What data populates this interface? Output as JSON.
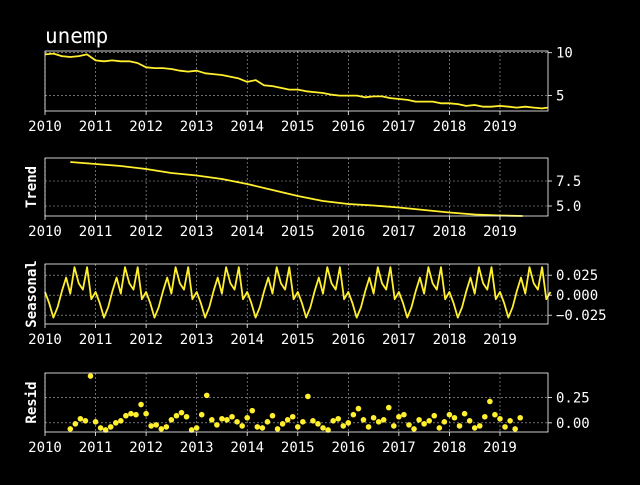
{
  "page": {
    "title": "unemp"
  },
  "style": {
    "background": "#000000",
    "foreground": "#ffffff",
    "series_color": "#ffef2e",
    "grid_color": "#b0b0b0"
  },
  "chart_data": [
    {
      "type": "line",
      "panel": "observed",
      "title": "unemp",
      "ylabel": "",
      "xlim": [
        2010.0,
        2019.95
      ],
      "ylim": [
        3.2,
        10.2
      ],
      "yticks": [
        5,
        10
      ],
      "ytick_labels": [
        "5",
        "10"
      ],
      "xticks": [
        2010,
        2011,
        2012,
        2013,
        2014,
        2015,
        2016,
        2017,
        2018,
        2019
      ],
      "xtick_labels": [
        "2010",
        "2011",
        "2012",
        "2013",
        "2014",
        "2015",
        "2016",
        "2017",
        "2018",
        "2019"
      ],
      "grid": true,
      "x": [
        2010.0,
        2010.17,
        2010.33,
        2010.5,
        2010.67,
        2010.83,
        2011.0,
        2011.17,
        2011.33,
        2011.5,
        2011.67,
        2011.83,
        2012.0,
        2012.17,
        2012.33,
        2012.5,
        2012.67,
        2012.83,
        2013.0,
        2013.17,
        2013.33,
        2013.5,
        2013.67,
        2013.83,
        2014.0,
        2014.17,
        2014.33,
        2014.5,
        2014.67,
        2014.83,
        2015.0,
        2015.17,
        2015.33,
        2015.5,
        2015.67,
        2015.83,
        2016.0,
        2016.17,
        2016.33,
        2016.5,
        2016.67,
        2016.83,
        2017.0,
        2017.17,
        2017.33,
        2017.5,
        2017.67,
        2017.83,
        2018.0,
        2018.17,
        2018.33,
        2018.5,
        2018.67,
        2018.83,
        2019.0,
        2019.17,
        2019.33,
        2019.5,
        2019.67,
        2019.83,
        2019.95
      ],
      "values": [
        9.8,
        9.9,
        9.6,
        9.5,
        9.6,
        9.8,
        9.1,
        9.0,
        9.1,
        9.0,
        9.0,
        8.8,
        8.3,
        8.2,
        8.2,
        8.1,
        7.9,
        7.8,
        7.9,
        7.6,
        7.5,
        7.4,
        7.2,
        7.0,
        6.6,
        6.8,
        6.2,
        6.1,
        5.9,
        5.7,
        5.7,
        5.5,
        5.4,
        5.3,
        5.1,
        5.0,
        5.0,
        5.0,
        4.8,
        4.9,
        4.9,
        4.7,
        4.6,
        4.5,
        4.3,
        4.3,
        4.3,
        4.1,
        4.1,
        4.0,
        3.8,
        3.9,
        3.7,
        3.7,
        3.8,
        3.7,
        3.6,
        3.7,
        3.6,
        3.5,
        3.6
      ]
    },
    {
      "type": "line",
      "panel": "trend",
      "title": "",
      "ylabel": "Trend",
      "xlim": [
        2010.0,
        2019.95
      ],
      "ylim": [
        4.0,
        9.8
      ],
      "yticks": [
        5.0,
        7.5
      ],
      "ytick_labels": [
        "5.0",
        "7.5"
      ],
      "xticks": [
        2010,
        2011,
        2012,
        2013,
        2014,
        2015,
        2016,
        2017,
        2018,
        2019
      ],
      "xtick_labels": [
        "2010",
        "2011",
        "2012",
        "2013",
        "2014",
        "2015",
        "2016",
        "2017",
        "2018",
        "2019"
      ],
      "grid": true,
      "x": [
        2010.5,
        2011.0,
        2011.5,
        2012.0,
        2012.5,
        2013.0,
        2013.5,
        2014.0,
        2014.5,
        2015.0,
        2015.5,
        2016.0,
        2016.5,
        2017.0,
        2017.5,
        2018.0,
        2018.5,
        2019.0,
        2019.45
      ],
      "values": [
        9.4,
        9.2,
        9.0,
        8.7,
        8.3,
        8.05,
        7.7,
        7.2,
        6.6,
        6.0,
        5.5,
        5.2,
        5.05,
        4.85,
        4.6,
        4.35,
        4.15,
        4.05,
        4.0
      ]
    },
    {
      "type": "line",
      "panel": "seasonal",
      "title": "",
      "ylabel": "Seasonal",
      "xlim": [
        2010.0,
        2019.95
      ],
      "ylim": [
        -0.036,
        0.039
      ],
      "yticks": [
        -0.025,
        0.0,
        0.025
      ],
      "ytick_labels": [
        "−0.025",
        "0.000",
        "0.025"
      ],
      "xticks": [
        2010,
        2011,
        2012,
        2013,
        2014,
        2015,
        2016,
        2017,
        2018,
        2019
      ],
      "xtick_labels": [
        "2010",
        "2011",
        "2012",
        "2013",
        "2014",
        "2015",
        "2016",
        "2017",
        "2018",
        "2019"
      ],
      "grid": true,
      "period_pattern": [
        0.004,
        -0.01,
        -0.028,
        -0.015,
        0.005,
        0.022,
        0.002,
        0.035,
        0.015,
        0.007,
        0.035,
        -0.005
      ],
      "years": 10
    },
    {
      "type": "scatter",
      "panel": "resid",
      "title": "",
      "ylabel": "Resid",
      "xlim": [
        2010.0,
        2019.95
      ],
      "ylim": [
        -0.09,
        0.49
      ],
      "yticks": [
        0.0,
        0.25
      ],
      "ytick_labels": [
        "0.00",
        "0.25"
      ],
      "xticks": [
        2010,
        2011,
        2012,
        2013,
        2014,
        2015,
        2016,
        2017,
        2018,
        2019
      ],
      "xtick_labels": [
        "2010",
        "2011",
        "2012",
        "2013",
        "2014",
        "2015",
        "2016",
        "2017",
        "2018",
        "2019"
      ],
      "grid": true,
      "x": [
        2010.5,
        2010.6,
        2010.7,
        2010.8,
        2010.9,
        2011.0,
        2011.1,
        2011.2,
        2011.3,
        2011.4,
        2011.5,
        2011.6,
        2011.7,
        2011.8,
        2011.9,
        2012.0,
        2012.1,
        2012.2,
        2012.3,
        2012.4,
        2012.5,
        2012.6,
        2012.7,
        2012.8,
        2012.9,
        2013.0,
        2013.1,
        2013.2,
        2013.3,
        2013.4,
        2013.5,
        2013.6,
        2013.7,
        2013.8,
        2013.9,
        2014.0,
        2014.1,
        2014.2,
        2014.3,
        2014.4,
        2014.5,
        2014.6,
        2014.7,
        2014.8,
        2014.9,
        2015.0,
        2015.1,
        2015.2,
        2015.3,
        2015.4,
        2015.5,
        2015.6,
        2015.7,
        2015.8,
        2015.9,
        2016.0,
        2016.1,
        2016.2,
        2016.3,
        2016.4,
        2016.5,
        2016.6,
        2016.7,
        2016.8,
        2016.9,
        2017.0,
        2017.1,
        2017.2,
        2017.3,
        2017.4,
        2017.5,
        2017.6,
        2017.7,
        2017.8,
        2017.9,
        2018.0,
        2018.1,
        2018.2,
        2018.3,
        2018.4,
        2018.5,
        2018.6,
        2018.7,
        2018.8,
        2018.9,
        2019.0,
        2019.1,
        2019.2,
        2019.3,
        2019.4
      ],
      "values": [
        -0.06,
        -0.01,
        0.04,
        0.02,
        0.46,
        0.01,
        -0.05,
        -0.07,
        -0.04,
        0.0,
        0.02,
        0.07,
        0.09,
        0.08,
        0.18,
        0.09,
        -0.03,
        -0.02,
        -0.06,
        -0.04,
        0.03,
        0.07,
        0.1,
        0.06,
        -0.07,
        -0.05,
        0.08,
        0.27,
        0.03,
        -0.02,
        0.04,
        0.03,
        0.06,
        0.01,
        -0.03,
        0.05,
        0.12,
        -0.04,
        -0.05,
        0.01,
        0.07,
        -0.06,
        -0.01,
        0.03,
        0.06,
        -0.04,
        0.01,
        0.26,
        0.02,
        -0.01,
        -0.05,
        -0.07,
        0.02,
        0.04,
        -0.03,
        0.0,
        0.08,
        0.14,
        0.03,
        -0.04,
        0.05,
        0.01,
        0.03,
        0.15,
        -0.03,
        0.06,
        0.08,
        -0.02,
        -0.06,
        0.03,
        -0.01,
        0.02,
        0.07,
        -0.05,
        0.01,
        0.08,
        0.05,
        -0.03,
        0.09,
        0.02,
        -0.05,
        -0.03,
        0.06,
        0.21,
        0.08,
        0.04,
        -0.04,
        0.02,
        -0.06,
        0.05
      ]
    }
  ]
}
